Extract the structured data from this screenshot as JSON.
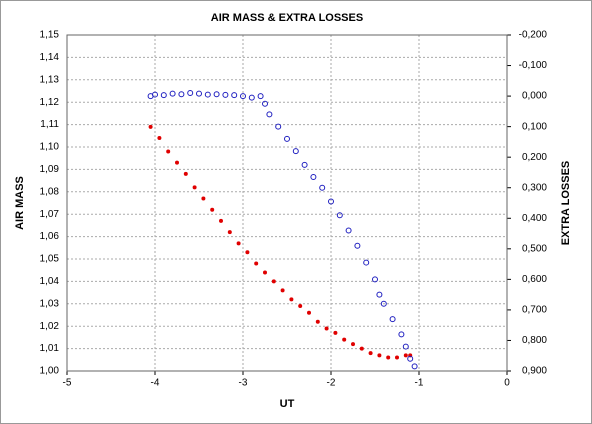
{
  "chart_data": {
    "type": "scatter",
    "title": "AIR MASS & EXTRA LOSSES",
    "x_label": "UT",
    "y_label": "AIR MASS",
    "y2_label": "EXTRA LOSSES",
    "xlim": [
      -5,
      0
    ],
    "xticks": [
      -5,
      -4,
      -3,
      -2,
      -1,
      0
    ],
    "ylim": [
      1.0,
      1.15
    ],
    "yticks": [
      {
        "value": 1.0,
        "label": "1,00"
      },
      {
        "value": 1.01,
        "label": "1,01"
      },
      {
        "value": 1.02,
        "label": "1,02"
      },
      {
        "value": 1.03,
        "label": "1,03"
      },
      {
        "value": 1.04,
        "label": "1,04"
      },
      {
        "value": 1.05,
        "label": "1,05"
      },
      {
        "value": 1.06,
        "label": "1,06"
      },
      {
        "value": 1.07,
        "label": "1,07"
      },
      {
        "value": 1.08,
        "label": "1,08"
      },
      {
        "value": 1.09,
        "label": "1,09"
      },
      {
        "value": 1.1,
        "label": "1,10"
      },
      {
        "value": 1.11,
        "label": "1,11"
      },
      {
        "value": 1.12,
        "label": "1,12"
      },
      {
        "value": 1.13,
        "label": "1,13"
      },
      {
        "value": 1.14,
        "label": "1,14"
      },
      {
        "value": 1.15,
        "label": "1,15"
      }
    ],
    "y2lim": [
      -0.2,
      0.9
    ],
    "y2_inverted": true,
    "y2ticks": [
      {
        "value": -0.2,
        "label": "-0,200"
      },
      {
        "value": -0.1,
        "label": "-0,100"
      },
      {
        "value": 0,
        "label": "0,000"
      },
      {
        "value": 0.1,
        "label": "0,100"
      },
      {
        "value": 0.2,
        "label": "0,200"
      },
      {
        "value": 0.3,
        "label": "0,300"
      },
      {
        "value": 0.4,
        "label": "0,400"
      },
      {
        "value": 0.5,
        "label": "0,500"
      },
      {
        "value": 0.6,
        "label": "0,600"
      },
      {
        "value": 0.7,
        "label": "0,700"
      },
      {
        "value": 0.8,
        "label": "0,800"
      },
      {
        "value": 0.9,
        "label": "0,900"
      }
    ],
    "grid": true,
    "series": [
      {
        "color": "#e00000",
        "marker": "filled",
        "x": [
          -4.05,
          -3.95,
          -3.85,
          -3.75,
          -3.65,
          -3.55,
          -3.45,
          -3.35,
          -3.25,
          -3.15,
          -3.05,
          -2.95,
          -2.85,
          -2.75,
          -2.65,
          -2.55,
          -2.45,
          -2.35,
          -2.25,
          -2.15,
          -2.05,
          -1.95,
          -1.85,
          -1.75,
          -1.65,
          -1.55,
          -1.45,
          -1.35,
          -1.25,
          -1.15,
          -1.1
        ],
        "values": [
          1.109,
          1.104,
          1.098,
          1.093,
          1.088,
          1.082,
          1.077,
          1.072,
          1.067,
          1.062,
          1.057,
          1.053,
          1.048,
          1.044,
          1.04,
          1.036,
          1.032,
          1.029,
          1.026,
          1.022,
          1.019,
          1.017,
          1.014,
          1.012,
          1.01,
          1.008,
          1.007,
          1.006,
          1.006,
          1.007,
          1.007
        ]
      },
      {
        "color": "#2020c0",
        "marker": "hollow",
        "axis": "y2",
        "x": [
          -4.05,
          -4.0,
          -3.9,
          -3.8,
          -3.7,
          -3.6,
          -3.5,
          -3.4,
          -3.3,
          -3.2,
          -3.1,
          -3.0,
          -2.9,
          -2.8,
          -2.75,
          -2.7,
          -2.6,
          -2.5,
          -2.4,
          -2.3,
          -2.2,
          -2.1,
          -2.0,
          -1.9,
          -1.8,
          -1.7,
          -1.6,
          -1.5,
          -1.45,
          -1.4,
          -1.3,
          -1.2,
          -1.15,
          -1.1,
          -1.05
        ],
        "values": [
          0.0,
          -0.005,
          -0.003,
          -0.008,
          -0.006,
          -0.01,
          -0.008,
          -0.005,
          -0.006,
          -0.004,
          -0.003,
          0.0,
          0.005,
          0.0,
          0.025,
          0.06,
          0.1,
          0.14,
          0.18,
          0.225,
          0.265,
          0.3,
          0.345,
          0.39,
          0.44,
          0.49,
          0.545,
          0.6,
          0.65,
          0.68,
          0.73,
          0.78,
          0.82,
          0.86,
          0.885
        ]
      }
    ]
  }
}
